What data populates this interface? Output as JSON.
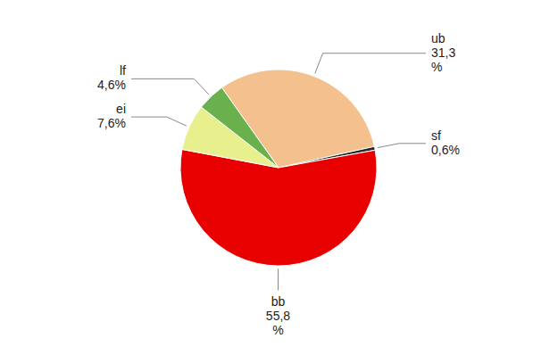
{
  "chart_data": {
    "type": "pie",
    "categories": [
      "ub",
      "sf",
      "bb",
      "ei",
      "lf"
    ],
    "values": [
      31.3,
      0.6,
      55.8,
      7.6,
      4.6
    ],
    "value_labels": [
      "31,3\n%",
      "0,6%",
      "55,8\n%",
      "7,6%",
      "4,6%"
    ],
    "colors": [
      "#f4c08e",
      "#2a2a2a",
      "#e80000",
      "#e8f08e",
      "#6ab04c"
    ],
    "data_labels": true
  }
}
